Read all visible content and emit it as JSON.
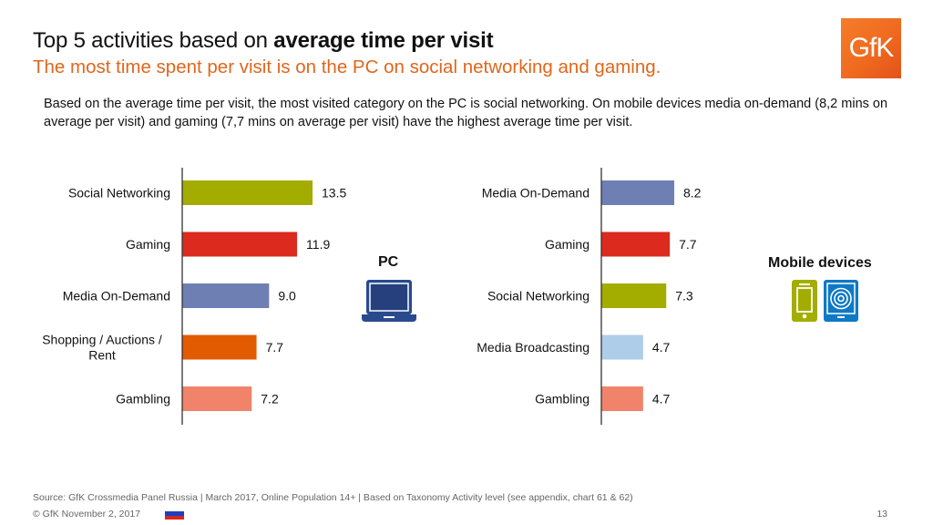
{
  "header": {
    "title_plain": "Top 5 activities based on ",
    "title_bold": "average time per visit",
    "subtitle": "The most time spent per visit is on the PC on social networking and gaming.",
    "logo_text": "GfK"
  },
  "description": "Based on the average time per visit, the most visited category on the PC is social networking. On mobile devices media on-demand (8,2 mins on average per visit) and gaming (7,7 mins on average per visit) have the highest average time per visit.",
  "devices": {
    "pc_label": "PC",
    "mobile_label": "Mobile devices",
    "pc_icon": "laptop-icon",
    "mobile_icons": [
      "smartphone-icon",
      "tablet-icon"
    ]
  },
  "chart_data": [
    {
      "type": "bar",
      "orientation": "horizontal",
      "title": "PC",
      "categories": [
        "Social Networking",
        "Gaming",
        "Media On-Demand",
        "Shopping / Auctions / Rent",
        "Gambling"
      ],
      "category_lines": [
        [
          "Social Networking"
        ],
        [
          "Gaming"
        ],
        [
          "Media On-Demand"
        ],
        [
          "Shopping / Auctions /",
          "Rent"
        ],
        [
          "Gambling"
        ]
      ],
      "values": [
        13.5,
        11.9,
        9.0,
        7.7,
        7.2
      ],
      "labels": [
        "13.5",
        "11.9",
        "9.0",
        "7.7",
        "7.2"
      ],
      "colors": [
        "#a3ad00",
        "#dc2a1f",
        "#6e7fb4",
        "#e35b00",
        "#f0836a"
      ],
      "xlabel": "",
      "ylabel": "",
      "xlim": [
        0,
        13.5
      ],
      "grid": false,
      "unit": "minutes per visit"
    },
    {
      "type": "bar",
      "orientation": "horizontal",
      "title": "Mobile devices",
      "categories": [
        "Media On-Demand",
        "Gaming",
        "Social Networking",
        "Media Broadcasting",
        "Gambling"
      ],
      "category_lines": [
        [
          "Media On-Demand"
        ],
        [
          "Gaming"
        ],
        [
          "Social Networking"
        ],
        [
          "Media Broadcasting"
        ],
        [
          "Gambling"
        ]
      ],
      "values": [
        8.2,
        7.7,
        7.3,
        4.7,
        4.7
      ],
      "labels": [
        "8.2",
        "7.7",
        "7.3",
        "4.7",
        "4.7"
      ],
      "colors": [
        "#6e7fb4",
        "#dc2a1f",
        "#a3ad00",
        "#aecde9",
        "#f0836a"
      ],
      "xlabel": "",
      "ylabel": "",
      "xlim": [
        0,
        8.2
      ],
      "grid": false,
      "unit": "minutes per visit"
    }
  ],
  "footer": {
    "source": "Source: GfK Crossmedia Panel Russia | March 2017, Online Population 14+ | Based on Taxonomy Activity level (see appendix, chart 61 & 62)",
    "copyright": "© GfK November 2, 2017",
    "flag_colors": [
      "#ffffff",
      "#1f3fbf",
      "#d52b1e"
    ],
    "page_number": "13"
  }
}
